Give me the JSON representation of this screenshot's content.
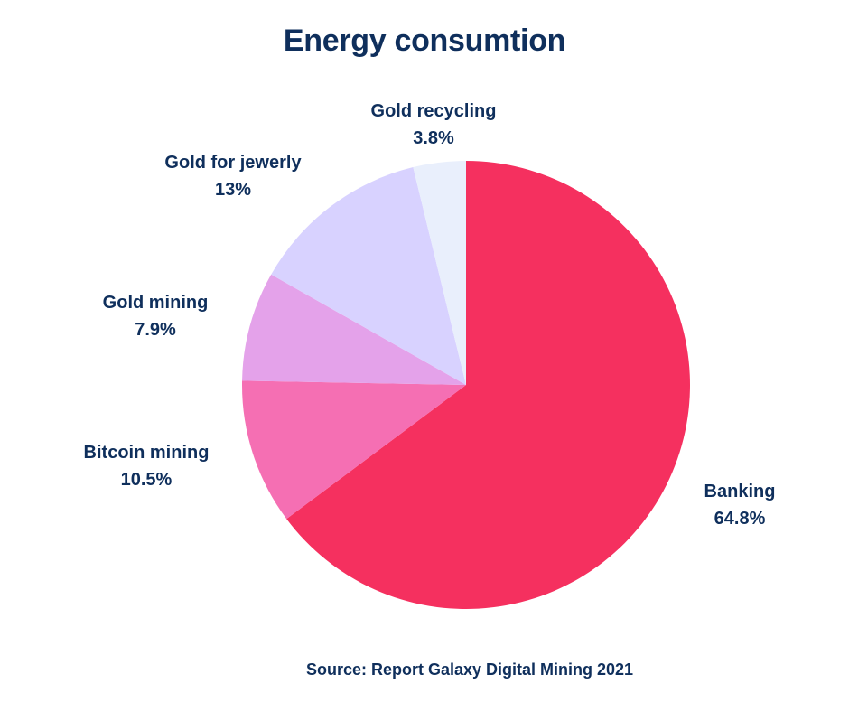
{
  "chart_data": {
    "type": "pie",
    "title": "Energy consumtion",
    "source": "Source: Report Galaxy Digital Mining 2021",
    "start": "top",
    "direction": "clockwise",
    "slices": [
      {
        "label": "Banking",
        "value": 64.8,
        "display": "64.8%",
        "color": "#f5305f"
      },
      {
        "label": "Bitcoin mining",
        "value": 10.5,
        "display": "10.5%",
        "color": "#f56fb3"
      },
      {
        "label": "Gold mining",
        "value": 7.9,
        "display": "7.9%",
        "color": "#e4a2ea"
      },
      {
        "label": "Gold for jewerly",
        "value": 13,
        "display": "13%",
        "color": "#d8d2ff"
      },
      {
        "label": "Gold recycling",
        "value": 3.8,
        "display": "3.8%",
        "color": "#e9effc"
      }
    ]
  }
}
